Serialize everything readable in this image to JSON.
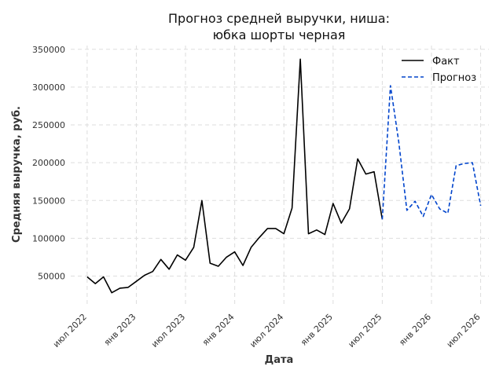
{
  "chart_data": {
    "type": "line",
    "title": [
      "Прогноз средней выручки, ниша:",
      "юбка шорты черная"
    ],
    "xlabel": "Дата",
    "ylabel": "Средняя выручка, руб.",
    "ylim": [
      10000,
      355000
    ],
    "xlim": [
      "2022-05",
      "2026-08"
    ],
    "y_ticks": [
      50000,
      100000,
      150000,
      200000,
      250000,
      300000,
      350000
    ],
    "x_ticks": [
      {
        "date": "2022-07",
        "label": "июл 2022"
      },
      {
        "date": "2023-01",
        "label": "янв 2023"
      },
      {
        "date": "2023-07",
        "label": "июл 2023"
      },
      {
        "date": "2024-01",
        "label": "янв 2024"
      },
      {
        "date": "2024-07",
        "label": "июл 2024"
      },
      {
        "date": "2025-01",
        "label": "янв 2025"
      },
      {
        "date": "2025-07",
        "label": "июл 2025"
      },
      {
        "date": "2026-01",
        "label": "янв 2026"
      },
      {
        "date": "2026-07",
        "label": "июл 2026"
      }
    ],
    "grid": true,
    "legend_position": "top-right",
    "series": [
      {
        "name": "Факт",
        "color": "#000000",
        "style": "solid",
        "points": [
          [
            "2022-07",
            49000
          ],
          [
            "2022-08",
            40000
          ],
          [
            "2022-09",
            49000
          ],
          [
            "2022-10",
            28000
          ],
          [
            "2022-11",
            34000
          ],
          [
            "2022-12",
            35000
          ],
          [
            "2023-01",
            43000
          ],
          [
            "2023-02",
            51000
          ],
          [
            "2023-03",
            56000
          ],
          [
            "2023-04",
            72000
          ],
          [
            "2023-05",
            59000
          ],
          [
            "2023-06",
            78000
          ],
          [
            "2023-07",
            71000
          ],
          [
            "2023-08",
            88000
          ],
          [
            "2023-09",
            150000
          ],
          [
            "2023-10",
            67000
          ],
          [
            "2023-11",
            63000
          ],
          [
            "2023-12",
            75000
          ],
          [
            "2024-01",
            82000
          ],
          [
            "2024-02",
            64000
          ],
          [
            "2024-03",
            88000
          ],
          [
            "2024-04",
            101000
          ],
          [
            "2024-05",
            113000
          ],
          [
            "2024-06",
            113000
          ],
          [
            "2024-07",
            106000
          ],
          [
            "2024-08",
            140000
          ],
          [
            "2024-09",
            337000
          ],
          [
            "2024-10",
            106000
          ],
          [
            "2024-11",
            111000
          ],
          [
            "2024-12",
            105000
          ],
          [
            "2025-01",
            146000
          ],
          [
            "2025-02",
            120000
          ],
          [
            "2025-03",
            139000
          ],
          [
            "2025-04",
            205000
          ],
          [
            "2025-05",
            185000
          ],
          [
            "2025-06",
            188000
          ],
          [
            "2025-07",
            125000
          ]
        ]
      },
      {
        "name": "Прогноз",
        "color": "#0044cc",
        "style": "dashed",
        "points": [
          [
            "2025-07",
            125000
          ],
          [
            "2025-08",
            302000
          ],
          [
            "2025-09",
            228000
          ],
          [
            "2025-10",
            137000
          ],
          [
            "2025-11",
            149000
          ],
          [
            "2025-12",
            129000
          ],
          [
            "2026-01",
            158000
          ],
          [
            "2026-02",
            139000
          ],
          [
            "2026-03",
            133000
          ],
          [
            "2026-04",
            196000
          ],
          [
            "2026-05",
            199000
          ],
          [
            "2026-06",
            200000
          ],
          [
            "2026-07",
            143000
          ]
        ]
      }
    ]
  }
}
